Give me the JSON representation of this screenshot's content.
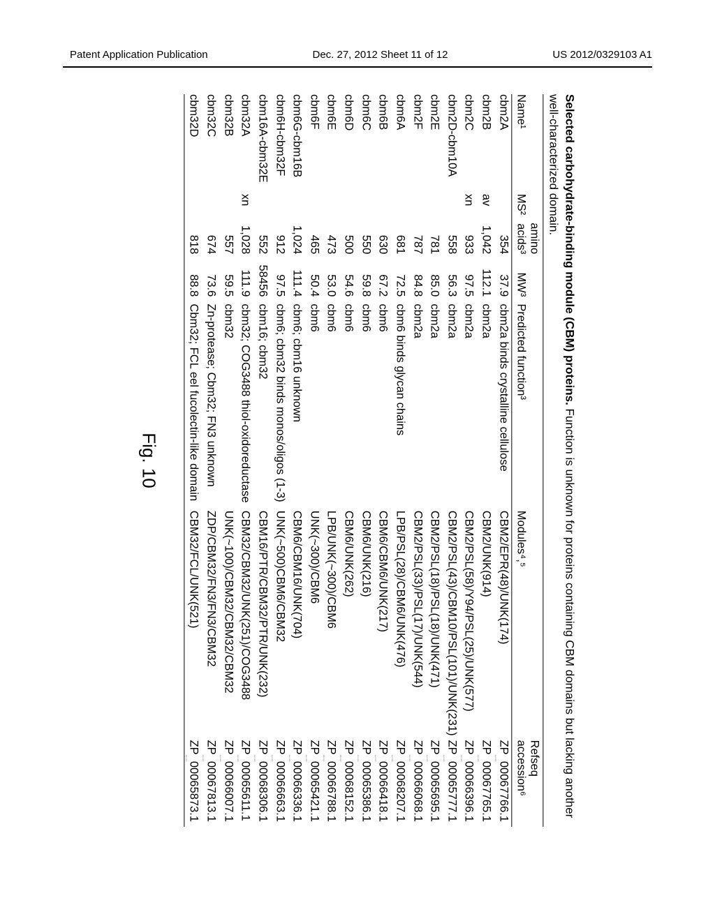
{
  "header": {
    "left": "Patent Application Publication",
    "center": "Dec. 27, 2012  Sheet 11 of 12",
    "right": "US 2012/0329103 A1"
  },
  "table": {
    "title_bold": "Selected carbohydrate-binding module (CBM) proteins.",
    "title_rest": " Function is unknown for proteins containing CBM domains but lacking another well-characterized domain.",
    "columns": {
      "name": "Name¹",
      "ms": "MS²",
      "amino_acids": "amino\nacids³",
      "mw": "MW³",
      "predicted_function": "Predicted function³",
      "modules": "Modules⁴,⁵",
      "refseq": "Refseq\naccession⁶"
    },
    "rows": [
      {
        "name": "cbm2A",
        "ms": "",
        "aa": "354",
        "mw": "37.9",
        "func": "cbm2a binds crystalline cellulose",
        "mod": "CBM2/EPR(48)/UNK(174)",
        "acc": "ZP_00067766.1"
      },
      {
        "name": "cbm2B",
        "ms": "av",
        "aa": "1,042",
        "mw": "112.1",
        "func": "cbm2a",
        "mod": "CBM2/UNK(914)",
        "acc": "ZP_00067765.1"
      },
      {
        "name": "cbm2C",
        "ms": "xn",
        "aa": "933",
        "mw": "97.5",
        "func": "cbm2a",
        "mod": "CBM2/PSL(58)/Y94/PSL(25)/UNK(577)",
        "acc": "ZP_00066396.1"
      },
      {
        "name": "cbm2D-cbm10A",
        "ms": "",
        "aa": "558",
        "mw": "56.3",
        "func": "cbm2a",
        "mod": "CBM2/PSL(43)/CBM10/PSL(101)/UNK(231)",
        "acc": "ZP_00065777.1"
      },
      {
        "name": "cbm2E",
        "ms": "",
        "aa": "781",
        "mw": "85.0",
        "func": "cbm2a",
        "mod": "CBM2/PSL(18)/PSL(18)/UNK(471)",
        "acc": "ZP_00065695.1"
      },
      {
        "name": "cbm2F",
        "ms": "",
        "aa": "787",
        "mw": "84.8",
        "func": "cbm2a",
        "mod": "CBM2/PSL(33)/PSL(17)/UNK(544)",
        "acc": "ZP_00066068.1"
      },
      {
        "name": "cbm6A",
        "ms": "",
        "aa": "681",
        "mw": "72.5",
        "func": "cbm6 binds glycan chains",
        "mod": "LPB/PSL(28)/CBM6/UNK(476)",
        "acc": "ZP_00068207.1"
      },
      {
        "name": "cbm6B",
        "ms": "",
        "aa": "630",
        "mw": "67.2",
        "func": "cbm6",
        "mod": "CBM6/CBM6/UNK(217)",
        "acc": "ZP_00066418.1"
      },
      {
        "name": "cbm6C",
        "ms": "",
        "aa": "550",
        "mw": "59.8",
        "func": "cbm6",
        "mod": "CBM6/UNK(216)",
        "acc": "ZP_00065386.1"
      },
      {
        "name": "cbm6D",
        "ms": "",
        "aa": "500",
        "mw": "54.6",
        "func": "cbm6",
        "mod": "CBM6/UNK(262)",
        "acc": "ZP_00068152.1"
      },
      {
        "name": "cbm6E",
        "ms": "",
        "aa": "473",
        "mw": "53.0",
        "func": "cbm6",
        "mod": "LPB/UNK(~300)/CBM6",
        "acc": "ZP_00066788.1"
      },
      {
        "name": "cbm6F",
        "ms": "",
        "aa": "465",
        "mw": "50.4",
        "func": "cbm6",
        "mod": "UNK(~300)/CBM6",
        "acc": "ZP_00065421.1"
      },
      {
        "name": "cbm6G-cbm16B",
        "ms": "",
        "aa": "1,024",
        "mw": "111.4",
        "func": "cbm6; cbm16 unknown",
        "mod": "CBM6/CBM16/UNK(704)",
        "acc": "ZP_00066336.1"
      },
      {
        "name": "cbm6H-cbm32F",
        "ms": "",
        "aa": "912",
        "mw": "97.5",
        "func": "cbm6; cbm32 binds monos/oligos (1-3)",
        "mod": "UNK(~500)CBM6/CBM32",
        "acc": "ZP_00066663.1"
      },
      {
        "name": "cbm16A-cbm32E",
        "ms": "",
        "aa": "552",
        "mw": "58456",
        "func": "cbm16; cbm32",
        "mod": "CBM16/PTR/CBM32/PTR/UNK(232)",
        "acc": "ZP_00068306.1"
      },
      {
        "name": "cbm32A",
        "ms": "xn",
        "aa": "1,028",
        "mw": "111.9",
        "func": "cbm32; COG3488 thiol-oxidoreductase",
        "mod": "CBM32/CBM32/UNK(251)/COG3488",
        "acc": "ZP_00065611.1"
      },
      {
        "name": "cbm32B",
        "ms": "",
        "aa": "557",
        "mw": "59.5",
        "func": "cbm32",
        "mod": "UNK(~100)/CBM32/CBM32/CBM32",
        "acc": "ZP_00066007.1"
      },
      {
        "name": "cbm32C",
        "ms": "",
        "aa": "674",
        "mw": "73.6",
        "func": "Zn-protease; Cbm32; FN3 unknown",
        "mod": "ZDP/CBM32/FN3/FN3/CBM32",
        "acc": "ZP_00067813.1"
      },
      {
        "name": "cbm32D",
        "ms": "",
        "aa": "818",
        "mw": "88.8",
        "func": "Cbm32; FCL eel fucolectin-like domain",
        "mod": "CBM32/FCL/UNK(521)",
        "acc": "ZP_00065873.1"
      }
    ]
  },
  "figure_caption": "Fig. 10"
}
